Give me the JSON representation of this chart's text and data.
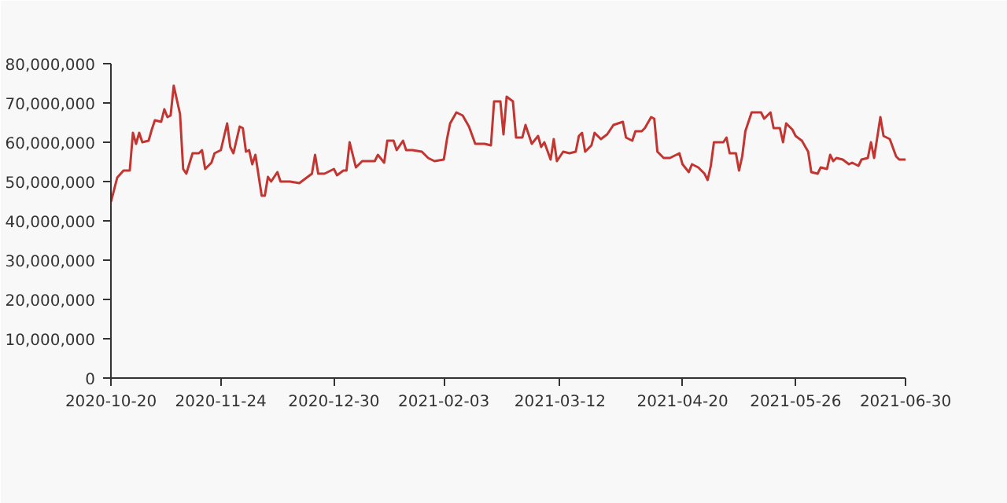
{
  "chart_data": {
    "type": "line",
    "x": [
      "2020-10-20",
      "2020-10-22",
      "2020-10-24",
      "2020-10-26",
      "2020-10-27",
      "2020-10-28",
      "2020-10-29",
      "2020-10-30",
      "2020-11-01",
      "2020-11-02",
      "2020-11-03",
      "2020-11-05",
      "2020-11-06",
      "2020-11-07",
      "2020-11-08",
      "2020-11-09",
      "2020-11-11",
      "2020-11-12",
      "2020-11-13",
      "2020-11-15",
      "2020-11-17",
      "2020-11-18",
      "2020-11-19",
      "2020-11-21",
      "2020-11-22",
      "2020-11-24",
      "2020-11-26",
      "2020-11-27",
      "2020-11-28",
      "2020-11-30",
      "2020-12-01",
      "2020-12-02",
      "2020-12-03",
      "2020-12-04",
      "2020-12-05",
      "2020-12-07",
      "2020-12-08",
      "2020-12-09",
      "2020-12-10",
      "2020-12-12",
      "2020-12-13",
      "2020-12-16",
      "2020-12-19",
      "2020-12-21",
      "2020-12-23",
      "2020-12-24",
      "2020-12-25",
      "2020-12-27",
      "2020-12-30",
      "2020-12-31",
      "2021-01-02",
      "2021-01-03",
      "2021-01-04",
      "2021-01-06",
      "2021-01-08",
      "2021-01-09",
      "2021-01-12",
      "2021-01-13",
      "2021-01-15",
      "2021-01-16",
      "2021-01-18",
      "2021-01-19",
      "2021-01-21",
      "2021-01-22",
      "2021-01-24",
      "2021-01-27",
      "2021-01-29",
      "2021-01-31",
      "2021-02-03",
      "2021-02-04",
      "2021-02-05",
      "2021-02-07",
      "2021-02-09",
      "2021-02-11",
      "2021-02-13",
      "2021-02-16",
      "2021-02-18",
      "2021-02-19",
      "2021-02-21",
      "2021-02-22",
      "2021-02-23",
      "2021-02-25",
      "2021-02-26",
      "2021-02-28",
      "2021-03-01",
      "2021-03-03",
      "2021-03-05",
      "2021-03-06",
      "2021-03-07",
      "2021-03-09",
      "2021-03-10",
      "2021-03-11",
      "2021-03-13",
      "2021-03-15",
      "2021-03-17",
      "2021-03-18",
      "2021-03-19",
      "2021-03-20",
      "2021-03-22",
      "2021-03-23",
      "2021-03-25",
      "2021-03-27",
      "2021-03-29",
      "2021-04-01",
      "2021-04-02",
      "2021-04-04",
      "2021-04-05",
      "2021-04-07",
      "2021-04-08",
      "2021-04-10",
      "2021-04-11",
      "2021-04-12",
      "2021-04-14",
      "2021-04-16",
      "2021-04-19",
      "2021-04-20",
      "2021-04-22",
      "2021-04-23",
      "2021-04-25",
      "2021-04-27",
      "2021-04-28",
      "2021-04-29",
      "2021-04-30",
      "2021-05-03",
      "2021-05-04",
      "2021-05-05",
      "2021-05-07",
      "2021-05-08",
      "2021-05-09",
      "2021-05-10",
      "2021-05-12",
      "2021-05-15",
      "2021-05-16",
      "2021-05-18",
      "2021-05-19",
      "2021-05-21",
      "2021-05-22",
      "2021-05-23",
      "2021-05-25",
      "2021-05-26",
      "2021-05-28",
      "2021-05-30",
      "2021-05-31",
      "2021-06-02",
      "2021-06-03",
      "2021-06-05",
      "2021-06-06",
      "2021-06-07",
      "2021-06-08",
      "2021-06-10",
      "2021-06-12",
      "2021-06-13",
      "2021-06-15",
      "2021-06-16",
      "2021-06-18",
      "2021-06-19",
      "2021-06-20",
      "2021-06-22",
      "2021-06-23",
      "2021-06-25",
      "2021-06-27",
      "2021-06-28",
      "2021-06-30"
    ],
    "series": [
      {
        "color": "#c23531",
        "values": [
          44800000,
          51000000,
          52800000,
          52800000,
          62400000,
          59600000,
          62400000,
          60000000,
          60400000,
          63200000,
          65600000,
          65200000,
          68400000,
          66400000,
          66800000,
          74400000,
          67200000,
          53200000,
          52000000,
          57200000,
          57200000,
          58000000,
          53200000,
          54800000,
          57200000,
          58000000,
          64800000,
          58800000,
          57200000,
          64000000,
          63600000,
          57600000,
          58000000,
          54400000,
          56800000,
          46400000,
          46400000,
          51200000,
          50000000,
          52400000,
          50000000,
          50000000,
          49600000,
          50800000,
          52000000,
          56800000,
          52000000,
          52000000,
          53200000,
          51600000,
          52800000,
          52800000,
          60000000,
          53600000,
          55200000,
          55200000,
          55200000,
          56800000,
          54800000,
          60400000,
          60400000,
          58000000,
          60400000,
          58000000,
          58000000,
          57600000,
          56000000,
          55200000,
          55600000,
          60800000,
          64800000,
          67600000,
          66800000,
          64000000,
          59600000,
          59600000,
          59200000,
          70400000,
          70400000,
          62000000,
          71600000,
          70400000,
          61200000,
          61200000,
          64400000,
          59600000,
          61600000,
          58800000,
          60000000,
          55600000,
          60800000,
          55200000,
          57600000,
          57200000,
          57600000,
          61600000,
          62400000,
          57600000,
          59200000,
          62400000,
          60800000,
          62000000,
          64400000,
          65200000,
          61200000,
          60400000,
          62800000,
          62800000,
          63600000,
          66400000,
          66000000,
          57600000,
          56000000,
          56000000,
          57200000,
          54400000,
          52400000,
          54400000,
          53600000,
          52000000,
          50400000,
          54000000,
          60000000,
          60000000,
          61200000,
          57200000,
          57200000,
          52800000,
          56400000,
          62800000,
          67600000,
          67600000,
          66000000,
          67600000,
          63600000,
          63600000,
          60000000,
          64800000,
          63200000,
          61600000,
          60400000,
          57600000,
          52400000,
          52000000,
          53600000,
          53200000,
          56800000,
          55200000,
          56000000,
          55600000,
          54400000,
          54800000,
          54000000,
          55600000,
          56000000,
          60000000,
          56000000,
          66400000,
          61600000,
          60800000,
          56400000,
          55600000,
          55600000
        ]
      }
    ],
    "xlim": [
      "2020-10-20",
      "2021-06-30"
    ],
    "xticks": [
      "2020-10-20",
      "2020-11-24",
      "2020-12-30",
      "2021-02-03",
      "2021-03-12",
      "2021-04-20",
      "2021-05-26",
      "2021-06-30"
    ],
    "ylim": [
      0,
      80000000
    ],
    "yticks": [
      {
        "value": 0,
        "label": "0"
      },
      {
        "value": 10000000,
        "label": "10,000,000"
      },
      {
        "value": 20000000,
        "label": "20,000,000"
      },
      {
        "value": 30000000,
        "label": "30,000,000"
      },
      {
        "value": 40000000,
        "label": "40,000,000"
      },
      {
        "value": 50000000,
        "label": "50,000,000"
      },
      {
        "value": 60000000,
        "label": "60,000,000"
      },
      {
        "value": 70000000,
        "label": "70,000,000"
      },
      {
        "value": 80000000,
        "label": "80,000,000"
      }
    ],
    "grid": false,
    "marker": "none",
    "line_style": "solid"
  }
}
